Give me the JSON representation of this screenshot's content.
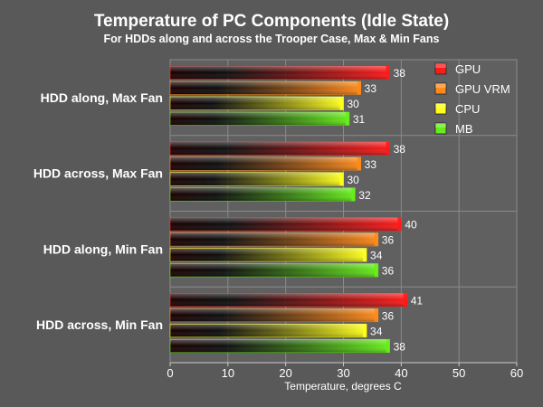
{
  "chart_data": {
    "type": "bar",
    "orientation": "horizontal",
    "title": "Temperature of PC Components (Idle State)",
    "subtitle": "For HDDs along and across the Trooper Case, Max & Min Fans",
    "xlabel": "Temperature, degrees C",
    "ylabel": "",
    "xlim": [
      0,
      60
    ],
    "xticks": [
      0,
      10,
      20,
      30,
      40,
      50,
      60
    ],
    "grid": true,
    "legend": "top-right",
    "categories": [
      "HDD along, Max Fan",
      "HDD across, Max Fan",
      "HDD along, Min Fan",
      "HDD across, Min Fan"
    ],
    "series": [
      {
        "name": "GPU",
        "color": "#ff1a1a",
        "values": [
          38,
          38,
          40,
          41
        ]
      },
      {
        "name": "GPU VRM",
        "color": "#ff8a1a",
        "values": [
          33,
          33,
          36,
          36
        ]
      },
      {
        "name": "CPU",
        "color": "#ffff1a",
        "values": [
          30,
          30,
          34,
          34
        ]
      },
      {
        "name": "MB",
        "color": "#66ee1a",
        "values": [
          31,
          32,
          36,
          38
        ]
      }
    ]
  }
}
